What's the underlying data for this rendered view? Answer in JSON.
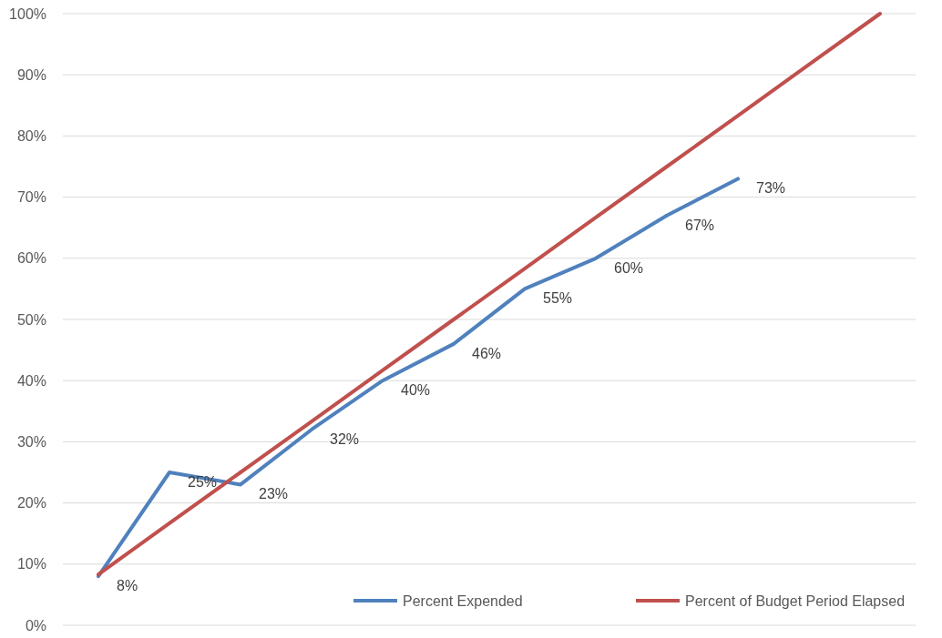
{
  "chart_data": {
    "type": "line",
    "categories": [
      null,
      null,
      null,
      null,
      null,
      null,
      null,
      null,
      null,
      null,
      null,
      null
    ],
    "series": [
      {
        "name": "Percent Expended",
        "color": "#4f81bd",
        "values": [
          8,
          25,
          23,
          32,
          40,
          46,
          55,
          60,
          67,
          73,
          null,
          null
        ],
        "value_labels": [
          "8%",
          "25%",
          "23%",
          "32%",
          "40%",
          "46%",
          "55%",
          "60%",
          "67%",
          "73%",
          null,
          null
        ]
      },
      {
        "name": "Percent of Budget Period Elapsed",
        "color": "#c0504d",
        "values": [
          8.3,
          16.7,
          25,
          33.3,
          41.7,
          50,
          58.3,
          66.7,
          75,
          83.3,
          91.7,
          100
        ]
      }
    ],
    "ylim": [
      0,
      100
    ],
    "yticks": [
      {
        "value": 0,
        "label": "0%"
      },
      {
        "value": 10,
        "label": "10%"
      },
      {
        "value": 20,
        "label": "20%"
      },
      {
        "value": 30,
        "label": "30%"
      },
      {
        "value": 40,
        "label": "40%"
      },
      {
        "value": 50,
        "label": "50%"
      },
      {
        "value": 60,
        "label": "60%"
      },
      {
        "value": 70,
        "label": "70%"
      },
      {
        "value": 80,
        "label": "80%"
      },
      {
        "value": 90,
        "label": "90%"
      },
      {
        "value": 100,
        "label": "100%"
      }
    ],
    "grid": "y",
    "legend": "bottom right",
    "marker": "none",
    "line_style": "solid"
  }
}
